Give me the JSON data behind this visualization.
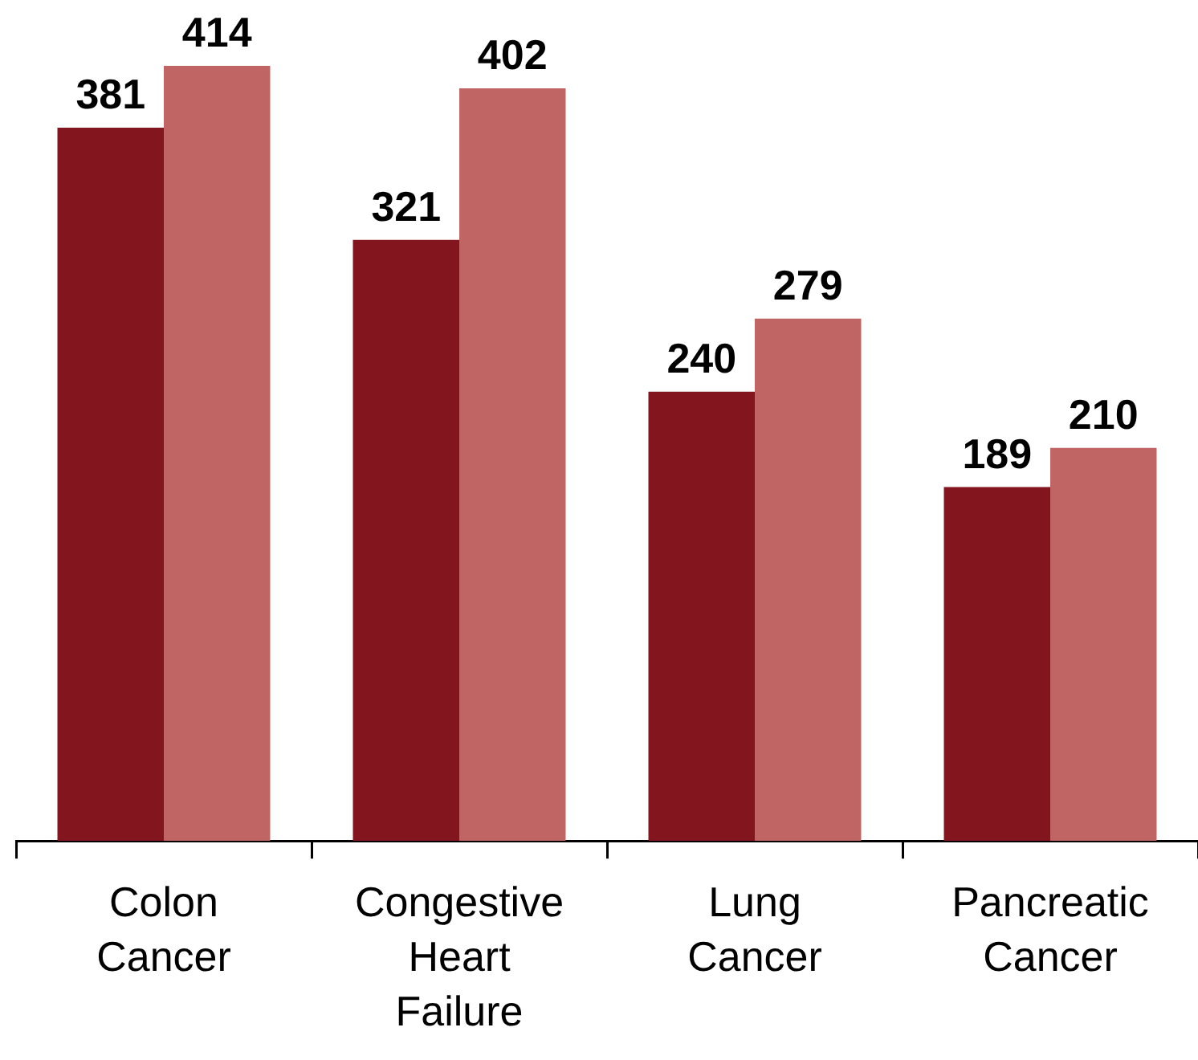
{
  "chart_data": {
    "type": "bar",
    "categories": [
      "Colon Cancer",
      "Congestive Heart Failure",
      "Lung Cancer",
      "Pancreatic Cancer"
    ],
    "series": [
      {
        "color": "#83151f",
        "values": [
          381,
          321,
          240,
          189
        ]
      },
      {
        "color": "#c06563",
        "values": [
          414,
          402,
          279,
          210
        ]
      }
    ],
    "data_labels": true,
    "grid": false,
    "legend": false
  }
}
